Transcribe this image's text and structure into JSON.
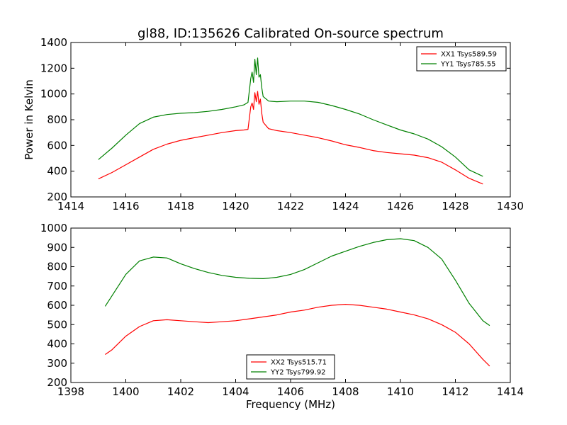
{
  "title": "gl88, ID:135626 Calibrated On-source spectrum",
  "chart_data": [
    {
      "type": "line",
      "ylabel": "Power in Kelvin",
      "xlabel": "",
      "xlim": [
        1414,
        1430
      ],
      "ylim": [
        200,
        1400
      ],
      "xticks": [
        1414,
        1416,
        1418,
        1420,
        1422,
        1424,
        1426,
        1428,
        1430
      ],
      "yticks": [
        200,
        400,
        600,
        800,
        1000,
        1200,
        1400
      ],
      "legend_position": "top-right",
      "series": [
        {
          "name": "XX1 Tsys589.59",
          "color": "#ff0000",
          "points": [
            [
              1415.0,
              340
            ],
            [
              1415.5,
              390
            ],
            [
              1416.0,
              450
            ],
            [
              1416.5,
              510
            ],
            [
              1417.0,
              570
            ],
            [
              1417.5,
              610
            ],
            [
              1418.0,
              640
            ],
            [
              1418.5,
              660
            ],
            [
              1419.0,
              680
            ],
            [
              1419.5,
              700
            ],
            [
              1420.0,
              715
            ],
            [
              1420.3,
              720
            ],
            [
              1420.45,
              725
            ],
            [
              1420.55,
              900
            ],
            [
              1420.6,
              930
            ],
            [
              1420.65,
              880
            ],
            [
              1420.7,
              1010
            ],
            [
              1420.75,
              940
            ],
            [
              1420.8,
              1020
            ],
            [
              1420.85,
              920
            ],
            [
              1420.9,
              960
            ],
            [
              1420.95,
              850
            ],
            [
              1421.0,
              780
            ],
            [
              1421.2,
              730
            ],
            [
              1421.5,
              715
            ],
            [
              1422.0,
              700
            ],
            [
              1422.5,
              680
            ],
            [
              1423.0,
              660
            ],
            [
              1423.5,
              635
            ],
            [
              1424.0,
              605
            ],
            [
              1424.5,
              585
            ],
            [
              1425.0,
              560
            ],
            [
              1425.5,
              545
            ],
            [
              1426.0,
              535
            ],
            [
              1426.5,
              525
            ],
            [
              1427.0,
              505
            ],
            [
              1427.5,
              470
            ],
            [
              1428.0,
              410
            ],
            [
              1428.5,
              345
            ],
            [
              1429.0,
              300
            ]
          ]
        },
        {
          "name": "YY1 Tsys785.55",
          "color": "#008000",
          "points": [
            [
              1415.0,
              490
            ],
            [
              1415.5,
              580
            ],
            [
              1416.0,
              680
            ],
            [
              1416.5,
              770
            ],
            [
              1417.0,
              820
            ],
            [
              1417.5,
              840
            ],
            [
              1418.0,
              850
            ],
            [
              1418.5,
              855
            ],
            [
              1419.0,
              865
            ],
            [
              1419.5,
              880
            ],
            [
              1420.0,
              900
            ],
            [
              1420.3,
              915
            ],
            [
              1420.45,
              935
            ],
            [
              1420.55,
              1120
            ],
            [
              1420.6,
              1170
            ],
            [
              1420.65,
              1090
            ],
            [
              1420.7,
              1270
            ],
            [
              1420.75,
              1150
            ],
            [
              1420.8,
              1280
            ],
            [
              1420.85,
              1130
            ],
            [
              1420.9,
              1150
            ],
            [
              1420.95,
              1050
            ],
            [
              1421.0,
              980
            ],
            [
              1421.2,
              945
            ],
            [
              1421.5,
              940
            ],
            [
              1422.0,
              945
            ],
            [
              1422.5,
              945
            ],
            [
              1423.0,
              935
            ],
            [
              1423.5,
              910
            ],
            [
              1424.0,
              880
            ],
            [
              1424.5,
              845
            ],
            [
              1425.0,
              800
            ],
            [
              1425.5,
              760
            ],
            [
              1426.0,
              720
            ],
            [
              1426.5,
              690
            ],
            [
              1427.0,
              650
            ],
            [
              1427.5,
              590
            ],
            [
              1428.0,
              510
            ],
            [
              1428.5,
              410
            ],
            [
              1429.0,
              360
            ]
          ]
        }
      ]
    },
    {
      "type": "line",
      "xlabel": "Frequency (MHz)",
      "ylabel": "",
      "xlim": [
        1398,
        1414
      ],
      "ylim": [
        200,
        1000
      ],
      "xticks": [
        1398,
        1400,
        1402,
        1404,
        1406,
        1408,
        1410,
        1412,
        1414
      ],
      "yticks": [
        200,
        300,
        400,
        500,
        600,
        700,
        800,
        900,
        1000
      ],
      "legend_position": "lower-center",
      "series": [
        {
          "name": "XX2 Tsys515.71",
          "color": "#ff0000",
          "points": [
            [
              1399.25,
              345
            ],
            [
              1399.5,
              370
            ],
            [
              1400.0,
              440
            ],
            [
              1400.5,
              490
            ],
            [
              1401.0,
              520
            ],
            [
              1401.5,
              525
            ],
            [
              1402.0,
              520
            ],
            [
              1402.5,
              515
            ],
            [
              1403.0,
              510
            ],
            [
              1403.5,
              515
            ],
            [
              1404.0,
              520
            ],
            [
              1404.5,
              530
            ],
            [
              1405.0,
              540
            ],
            [
              1405.5,
              550
            ],
            [
              1406.0,
              565
            ],
            [
              1406.5,
              575
            ],
            [
              1407.0,
              590
            ],
            [
              1407.5,
              600
            ],
            [
              1408.0,
              605
            ],
            [
              1408.5,
              600
            ],
            [
              1409.0,
              590
            ],
            [
              1409.5,
              580
            ],
            [
              1410.0,
              565
            ],
            [
              1410.5,
              550
            ],
            [
              1411.0,
              530
            ],
            [
              1411.5,
              500
            ],
            [
              1412.0,
              460
            ],
            [
              1412.5,
              400
            ],
            [
              1413.0,
              320
            ],
            [
              1413.25,
              285
            ]
          ]
        },
        {
          "name": "YY2 Tsys799.92",
          "color": "#008000",
          "points": [
            [
              1399.25,
              595
            ],
            [
              1399.5,
              650
            ],
            [
              1400.0,
              760
            ],
            [
              1400.5,
              830
            ],
            [
              1401.0,
              850
            ],
            [
              1401.5,
              845
            ],
            [
              1402.0,
              815
            ],
            [
              1402.5,
              790
            ],
            [
              1403.0,
              770
            ],
            [
              1403.5,
              755
            ],
            [
              1404.0,
              745
            ],
            [
              1404.5,
              740
            ],
            [
              1405.0,
              738
            ],
            [
              1405.5,
              745
            ],
            [
              1406.0,
              760
            ],
            [
              1406.5,
              785
            ],
            [
              1407.0,
              820
            ],
            [
              1407.5,
              855
            ],
            [
              1408.0,
              880
            ],
            [
              1408.5,
              905
            ],
            [
              1409.0,
              925
            ],
            [
              1409.5,
              940
            ],
            [
              1410.0,
              945
            ],
            [
              1410.5,
              935
            ],
            [
              1411.0,
              900
            ],
            [
              1411.5,
              840
            ],
            [
              1412.0,
              730
            ],
            [
              1412.5,
              610
            ],
            [
              1413.0,
              520
            ],
            [
              1413.25,
              495
            ]
          ]
        }
      ]
    }
  ]
}
